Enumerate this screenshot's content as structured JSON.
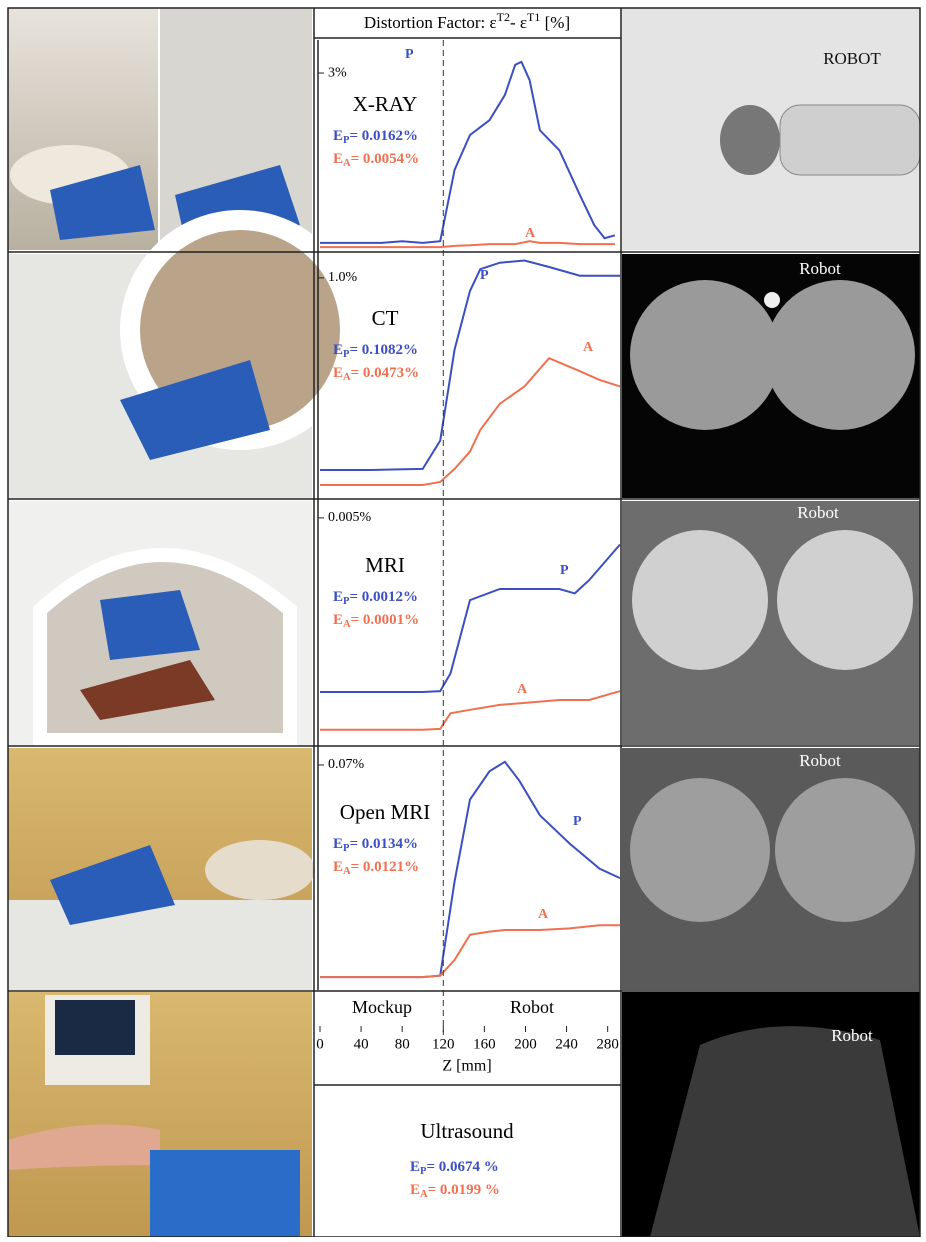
{
  "header": {
    "parts": [
      "Distortion Factor:  ε",
      "T2",
      "- ε",
      "T1",
      " [%]"
    ]
  },
  "chart_data": [
    {
      "type": "line",
      "title": "X-RAY",
      "ylim": [
        0,
        3.56
      ],
      "yticks": [
        {
          "value": 3,
          "label": "3%"
        }
      ],
      "x": [
        0,
        20,
        40,
        60,
        80,
        100,
        117,
        131,
        146,
        165,
        180,
        190,
        196,
        204,
        214,
        233,
        253,
        267,
        277,
        287
      ],
      "series": [
        {
          "name": "P",
          "color": "#3b4fc2",
          "values": [
            0.12,
            0.12,
            0.12,
            0.12,
            0.15,
            0.12,
            0.15,
            1.36,
            1.95,
            2.2,
            2.63,
            3.14,
            3.19,
            2.88,
            2.03,
            1.69,
            0.93,
            0.42,
            0.2,
            0.25
          ]
        },
        {
          "name": "A",
          "color": "#f07050",
          "values": [
            0.05,
            0.05,
            0.05,
            0.05,
            0.05,
            0.05,
            0.05,
            0.07,
            0.08,
            0.1,
            0.1,
            0.1,
            0.12,
            0.15,
            0.12,
            0.12,
            0.1,
            0.1,
            0.1,
            0.1
          ]
        }
      ],
      "metrics": [
        {
          "symbol": "E",
          "subscript": "P",
          "text": "= 0.0162%"
        },
        {
          "symbol": "E",
          "subscript": "A",
          "text": "= 0.0054%"
        }
      ]
    },
    {
      "type": "line",
      "title": "CT",
      "ylim": [
        0,
        1.11
      ],
      "yticks": [
        {
          "value": 1.0,
          "label": "1.0%"
        }
      ],
      "x": [
        0,
        50,
        100,
        117,
        131,
        146,
        156,
        175,
        199,
        223,
        253,
        272,
        292
      ],
      "series": [
        {
          "name": "P",
          "color": "#3b4fc2",
          "values": [
            0.115,
            0.115,
            0.12,
            0.25,
            0.67,
            0.94,
            1.04,
            1.07,
            1.08,
            1.05,
            1.01,
            1.01,
            1.01
          ]
        },
        {
          "name": "A",
          "color": "#f07050",
          "values": [
            0.046,
            0.046,
            0.046,
            0.06,
            0.12,
            0.2,
            0.3,
            0.42,
            0.5,
            0.63,
            0.57,
            0.53,
            0.5
          ]
        }
      ],
      "metrics": [
        {
          "symbol": "E",
          "subscript": "P",
          "text": "= 0.1082%"
        },
        {
          "symbol": "E",
          "subscript": "A",
          "text": "= 0.0473%"
        }
      ]
    },
    {
      "type": "line",
      "title": "MRI",
      "ylim": [
        0,
        0.00538
      ],
      "yticks": [
        {
          "value": 0.005,
          "label": "0.005%"
        }
      ],
      "x": [
        0,
        50,
        100,
        117,
        127,
        146,
        175,
        233,
        248,
        262,
        292
      ],
      "series": [
        {
          "name": "P",
          "color": "#3b4fc2",
          "values": [
            0.00108,
            0.00108,
            0.00108,
            0.0011,
            0.0015,
            0.00315,
            0.0034,
            0.0034,
            0.0033,
            0.0036,
            0.0044
          ]
        },
        {
          "name": "A",
          "color": "#f07050",
          "values": [
            0.00023,
            0.00023,
            0.00023,
            0.00025,
            0.0006,
            0.00068,
            0.00079,
            0.0009,
            0.0009,
            0.0009,
            0.0011
          ]
        }
      ],
      "metrics": [
        {
          "symbol": "E",
          "subscript": "P",
          "text": "= 0.0012%"
        },
        {
          "symbol": "E",
          "subscript": "A",
          "text": "= 0.0001%"
        }
      ]
    },
    {
      "type": "line",
      "title": "Open MRI",
      "ylim": [
        0,
        0.0754
      ],
      "yticks": [
        {
          "value": 0.07,
          "label": "0.07%"
        }
      ],
      "x": [
        0,
        50,
        100,
        117,
        131,
        146,
        165,
        180,
        194,
        214,
        243,
        272,
        292
      ],
      "series": [
        {
          "name": "P",
          "color": "#3b4fc2",
          "values": [
            0.0025,
            0.0025,
            0.0025,
            0.003,
            0.033,
            0.059,
            0.068,
            0.071,
            0.065,
            0.054,
            0.045,
            0.037,
            0.034
          ]
        },
        {
          "name": "A",
          "color": "#f07050",
          "values": [
            0.0025,
            0.0025,
            0.0025,
            0.003,
            0.008,
            0.016,
            0.017,
            0.0175,
            0.0175,
            0.0175,
            0.018,
            0.019,
            0.019
          ]
        }
      ],
      "metrics": [
        {
          "symbol": "E",
          "subscript": "P",
          "text": "= 0.0134%"
        },
        {
          "symbol": "E",
          "subscript": "A",
          "text": "= 0.0121%"
        }
      ]
    }
  ],
  "x_axis": {
    "xlim": [
      0,
      292
    ],
    "xticks": [
      0,
      40,
      80,
      120,
      160,
      200,
      240,
      280
    ],
    "xlabel": "Z [mm]",
    "regions": [
      "Mockup",
      "Robot"
    ],
    "boundary": 120
  },
  "ultrasound": {
    "title": "Ultrasound",
    "metrics": [
      {
        "symbol": "E",
        "subscript": "P",
        "text": "= 0.0674 %"
      },
      {
        "symbol": "E",
        "subscript": "A",
        "text": "= 0.0199 %"
      }
    ]
  },
  "images": [
    {
      "label": "ROBOT"
    },
    {
      "label": "Robot"
    },
    {
      "label": "Robot"
    },
    {
      "label": "Robot"
    },
    {
      "label": "Robot"
    }
  ]
}
